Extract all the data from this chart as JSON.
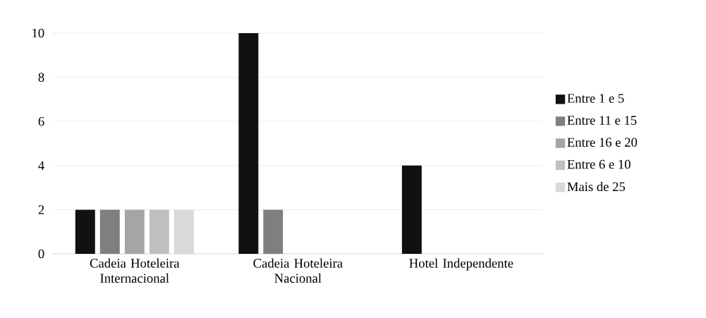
{
  "chart_data": {
    "type": "bar",
    "categories": [
      "Cadeia Hoteleira Internacional",
      "Cadeia Hoteleira Nacional",
      "Hotel Independente"
    ],
    "series": [
      {
        "name": "Entre 1 e 5",
        "color": "#111111",
        "values": [
          2,
          10,
          4
        ]
      },
      {
        "name": "Entre 11 e 15",
        "color": "#7f7f7f",
        "values": [
          2,
          2,
          null
        ]
      },
      {
        "name": "Entre 16 e 20",
        "color": "#a5a5a5",
        "values": [
          2,
          null,
          null
        ]
      },
      {
        "name": "Entre 6 e 10",
        "color": "#bfbfbf",
        "values": [
          2,
          null,
          null
        ]
      },
      {
        "name": "Mais de 25",
        "color": "#d9d9d9",
        "values": [
          2,
          null,
          null
        ]
      }
    ],
    "ylim": [
      0,
      10
    ],
    "yticks": [
      0,
      2,
      4,
      6,
      8,
      10
    ],
    "grid": "y",
    "legend": "right"
  }
}
